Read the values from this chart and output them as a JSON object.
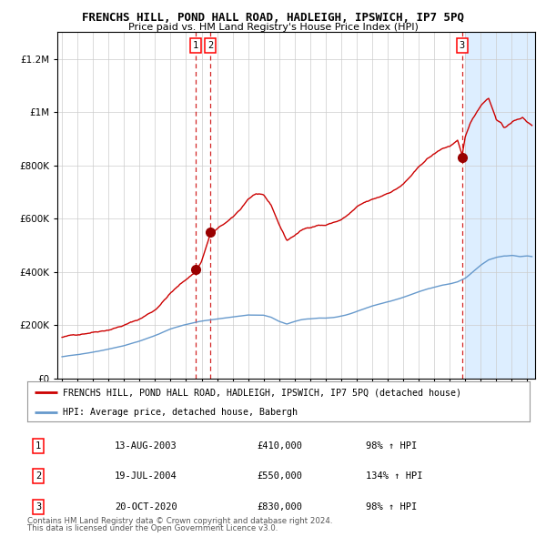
{
  "title": "FRENCHS HILL, POND HALL ROAD, HADLEIGH, IPSWICH, IP7 5PQ",
  "subtitle": "Price paid vs. HM Land Registry's House Price Index (HPI)",
  "legend_line1": "FRENCHS HILL, POND HALL ROAD, HADLEIGH, IPSWICH, IP7 5PQ (detached house)",
  "legend_line2": "HPI: Average price, detached house, Babergh",
  "footer1": "Contains HM Land Registry data © Crown copyright and database right 2024.",
  "footer2": "This data is licensed under the Open Government Licence v3.0.",
  "transactions": [
    {
      "id": 1,
      "date": "13-AUG-2003",
      "date_num": 2003.62,
      "price": 410000,
      "hpi_pct": "98%"
    },
    {
      "id": 2,
      "date": "19-JUL-2004",
      "date_num": 2004.55,
      "price": 550000,
      "hpi_pct": "134%"
    },
    {
      "id": 3,
      "date": "20-OCT-2020",
      "date_num": 2020.8,
      "price": 830000,
      "hpi_pct": "98%"
    }
  ],
  "red_color": "#cc0000",
  "blue_color": "#6699cc",
  "marker_color": "#990000",
  "dashed_color": "#cc0000",
  "highlight_color": "#ddeeff",
  "background_color": "#ffffff",
  "grid_color": "#cccccc",
  "ylim": [
    0,
    1300000
  ],
  "xlim_start": 1994.7,
  "xlim_end": 2025.5,
  "yticks": [
    0,
    200000,
    400000,
    600000,
    800000,
    1000000,
    1200000
  ],
  "ytick_labels": [
    "£0",
    "£200K",
    "£400K",
    "£600K",
    "£800K",
    "£1M",
    "£1.2M"
  ],
  "xticks": [
    1995,
    1996,
    1997,
    1998,
    1999,
    2000,
    2001,
    2002,
    2003,
    2004,
    2005,
    2006,
    2007,
    2008,
    2009,
    2010,
    2011,
    2012,
    2013,
    2014,
    2015,
    2016,
    2017,
    2018,
    2019,
    2020,
    2021,
    2022,
    2023,
    2024,
    2025
  ],
  "highlight_start": 2021.0
}
